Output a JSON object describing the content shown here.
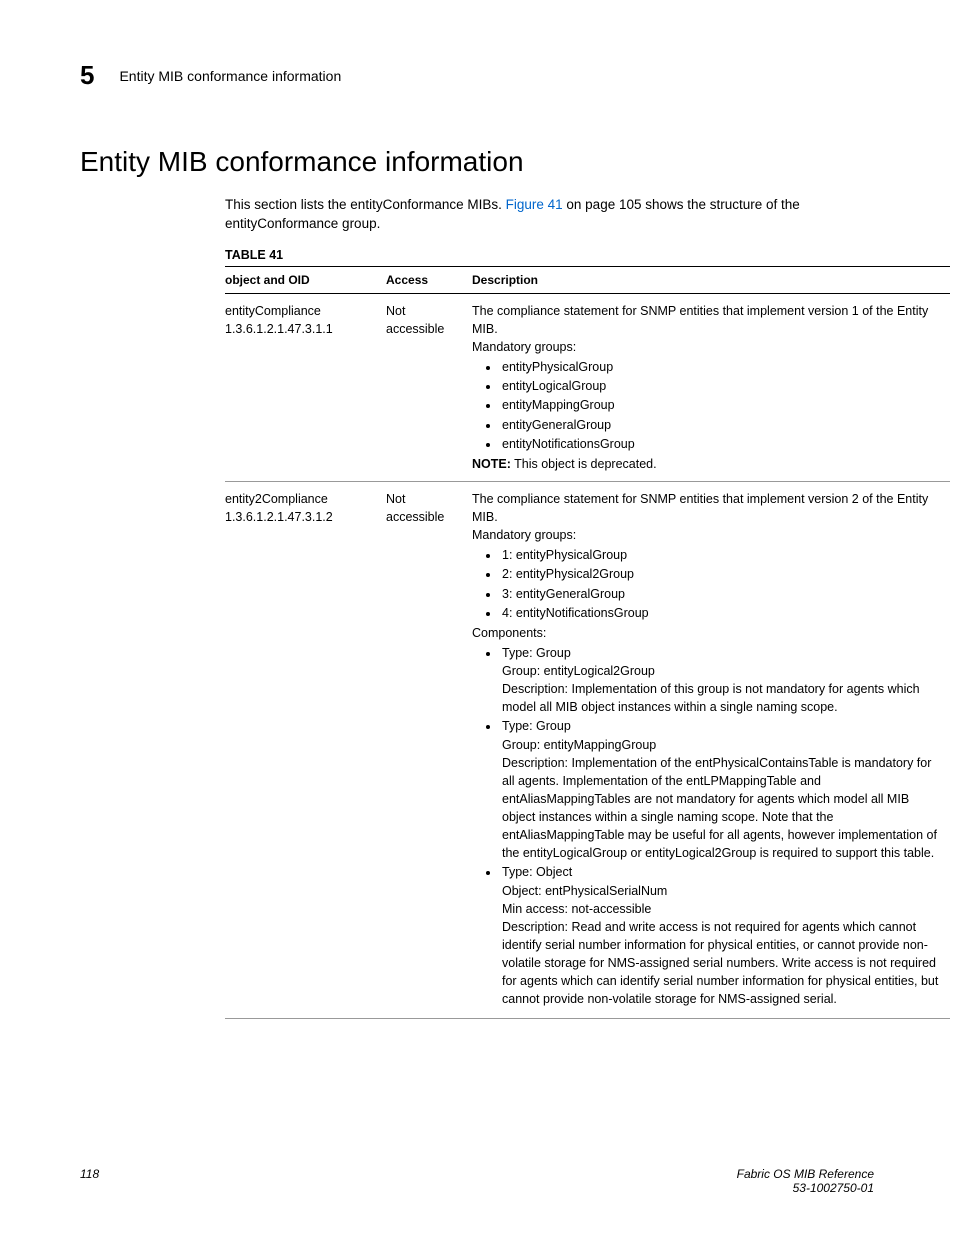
{
  "header": {
    "chapter_number": "5",
    "section_name": "Entity MIB conformance information"
  },
  "title": "Entity MIB conformance information",
  "intro": {
    "pre": "This section lists the entityConformance MIBs. ",
    "link": "Figure 41",
    "post": " on page 105 shows the structure of the entityConformance group."
  },
  "table": {
    "label": "TABLE 41",
    "columns": {
      "c1": "object and OID",
      "c2": "Access",
      "c3": "Description"
    },
    "rows": [
      {
        "obj_name": "entityCompliance",
        "obj_oid": "1.3.6.1.2.1.47.3.1.1",
        "access": "Not accessible",
        "desc_lead": "The compliance statement for SNMP entities that implement version 1 of the Entity MIB.",
        "mandatory_label": "Mandatory groups:",
        "mandatory_items": [
          "entityPhysicalGroup",
          "entityLogicalGroup",
          "entityMappingGroup",
          "entityGeneralGroup",
          "entityNotificationsGroup"
        ],
        "note_label": "NOTE:",
        "note_text": "  This object is deprecated."
      },
      {
        "obj_name": "entity2Compliance",
        "obj_oid": "1.3.6.1.2.1.47.3.1.2",
        "access": "Not accessible",
        "desc_lead": "The compliance statement for SNMP entities that implement version 2 of the Entity MIB.",
        "mandatory_label": "Mandatory groups:",
        "mandatory_items": [
          "1: entityPhysicalGroup",
          "2: entityPhysical2Group",
          "3: entityGeneralGroup",
          "4: entityNotificationsGroup"
        ],
        "components_label": "Components:",
        "components": [
          {
            "head": "Type: Group",
            "lines": [
              "Group: entityLogical2Group",
              "Description: Implementation of this group is not mandatory for agents which model all MIB object instances within a single naming scope."
            ]
          },
          {
            "head": "Type: Group",
            "lines": [
              "Group: entityMappingGroup",
              "Description: Implementation of the entPhysicalContainsTable is mandatory for all agents. Implementation of the entLPMappingTable and entAliasMappingTables are not mandatory for agents which model all MIB object instances within a single naming scope. Note that the entAliasMappingTable may be useful for all agents, however implementation of the entityLogicalGroup or entityLogical2Group is required to support this table."
            ]
          },
          {
            "head": "Type: Object",
            "lines": [
              "Object: entPhysicalSerialNum",
              "Min access: not-accessible",
              "Description: Read and write access is not required for agents which cannot identify serial number information for physical entities, or cannot provide non-volatile storage for NMS-assigned serial numbers. Write access is not required for agents which can identify serial number information for physical entities, but cannot provide non-volatile storage for NMS-assigned serial."
            ]
          }
        ]
      }
    ]
  },
  "footer": {
    "page_num": "118",
    "doc_title": "Fabric OS MIB Reference",
    "doc_id": "53-1002750-01"
  }
}
